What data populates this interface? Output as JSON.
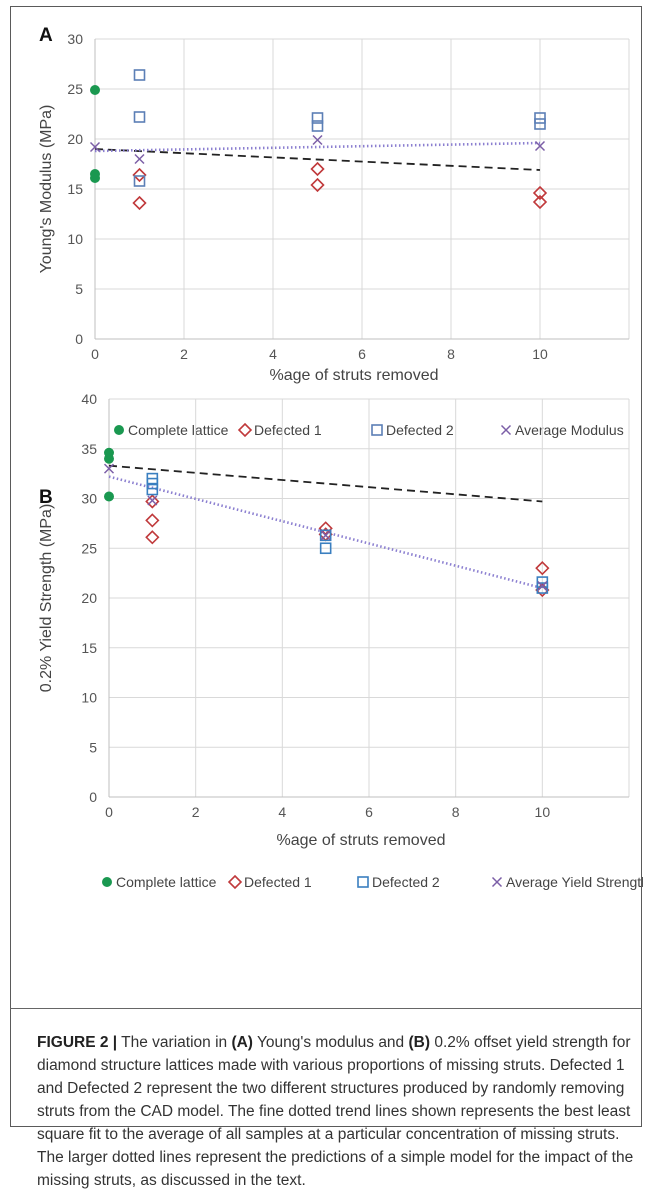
{
  "chart_data": [
    {
      "panel": "A",
      "type": "scatter",
      "xlabel": "%age of struts removed",
      "ylabel": "Young's Modulus (MPa)",
      "xlim": [
        0,
        12
      ],
      "ylim": [
        0,
        30
      ],
      "xticks": [
        0,
        2,
        4,
        6,
        8,
        10
      ],
      "yticks": [
        0,
        5,
        10,
        15,
        20,
        25,
        30
      ],
      "grid": true,
      "legend_position": "bottom",
      "series": [
        {
          "name": "Complete lattice",
          "marker": "circle",
          "color": "#1a9850",
          "points": [
            [
              0,
              24.9
            ],
            [
              0,
              16.5
            ],
            [
              0,
              16.1
            ]
          ]
        },
        {
          "name": "Defected 1",
          "marker": "diamond",
          "color": "#c0393b",
          "points": [
            [
              1,
              16.4
            ],
            [
              1,
              13.6
            ],
            [
              5,
              17.0
            ],
            [
              5,
              15.4
            ],
            [
              10,
              14.6
            ],
            [
              10,
              13.7
            ]
          ]
        },
        {
          "name": "Defected 2",
          "marker": "square",
          "color": "#5b7fb6",
          "points": [
            [
              1,
              26.4
            ],
            [
              1,
              22.2
            ],
            [
              1,
              15.8
            ],
            [
              5,
              22.1
            ],
            [
              5,
              21.3
            ],
            [
              10,
              22.1
            ],
            [
              10,
              21.5
            ]
          ]
        },
        {
          "name": "Average Modulus",
          "marker": "x",
          "color": "#7b5ea7",
          "points": [
            [
              0,
              19.2
            ],
            [
              1,
              18.0
            ],
            [
              5,
              19.9
            ],
            [
              10,
              19.3
            ]
          ]
        }
      ],
      "trend_lines": [
        {
          "style": "dashed",
          "color": "#222222",
          "points": [
            [
              0,
              19.0
            ],
            [
              10,
              16.9
            ]
          ]
        },
        {
          "style": "dotted",
          "color": "#8b7fd0",
          "points": [
            [
              0,
              18.8
            ],
            [
              10,
              19.6
            ]
          ]
        }
      ],
      "legend": [
        "Complete lattice",
        "Defected 1",
        "Defected 2",
        "Average Modulus"
      ]
    },
    {
      "panel": "B",
      "type": "scatter",
      "xlabel": "%age of struts removed",
      "ylabel": "0.2% Yield Strength (MPa)",
      "xlim": [
        0,
        12
      ],
      "ylim": [
        0,
        40
      ],
      "xticks": [
        0,
        2,
        4,
        6,
        8,
        10
      ],
      "yticks": [
        0,
        5,
        10,
        15,
        20,
        25,
        30,
        35,
        40
      ],
      "grid": true,
      "legend_position": "bottom",
      "series": [
        {
          "name": "Complete lattice",
          "marker": "circle",
          "color": "#1a9850",
          "points": [
            [
              0,
              34.6
            ],
            [
              0,
              34.0
            ],
            [
              0,
              30.2
            ]
          ]
        },
        {
          "name": "Defected 1",
          "marker": "diamond",
          "color": "#c0393b",
          "points": [
            [
              1,
              29.7
            ],
            [
              1,
              27.8
            ],
            [
              1,
              26.1
            ],
            [
              5,
              27.0
            ],
            [
              5,
              26.4
            ],
            [
              10,
              23.0
            ],
            [
              10,
              20.8
            ]
          ]
        },
        {
          "name": "Defected 2",
          "marker": "square",
          "color": "#3a7fc0",
          "points": [
            [
              1,
              32.0
            ],
            [
              1,
              31.5
            ],
            [
              1,
              30.9
            ],
            [
              5,
              26.3
            ],
            [
              5,
              25.0
            ],
            [
              10,
              21.6
            ],
            [
              10,
              21.0
            ]
          ]
        },
        {
          "name": "Average Yield Strength",
          "marker": "x",
          "color": "#7b5ea7",
          "points": [
            [
              0,
              33.0
            ],
            [
              1,
              29.8
            ],
            [
              5,
              26.3
            ],
            [
              10,
              21.2
            ]
          ]
        }
      ],
      "trend_lines": [
        {
          "style": "dashed",
          "color": "#222222",
          "points": [
            [
              0,
              33.3
            ],
            [
              10,
              29.7
            ]
          ]
        },
        {
          "style": "dotted",
          "color": "#8b7fd0",
          "points": [
            [
              0,
              32.2
            ],
            [
              10,
              21.0
            ]
          ]
        }
      ],
      "legend": [
        "Complete lattice",
        "Defected 1",
        "Defected 2",
        "Average Yield Strength"
      ]
    }
  ],
  "caption": {
    "label": "FIGURE 2 |",
    "t1": " The variation in ",
    "a": "(A)",
    "t2": " Young's modulus and ",
    "b": "(B)",
    "t3": " 0.2% offset yield strength for diamond structure lattices made with various proportions of missing struts. Defected 1 and Defected 2 represent the two different structures produced by randomly removing struts from the CAD model. The fine dotted trend lines shown represents the best least square fit to the average of all samples at a particular concentration of missing struts. The larger dotted lines represent the predictions of a simple model for the impact of the missing struts, as discussed in the text."
  }
}
